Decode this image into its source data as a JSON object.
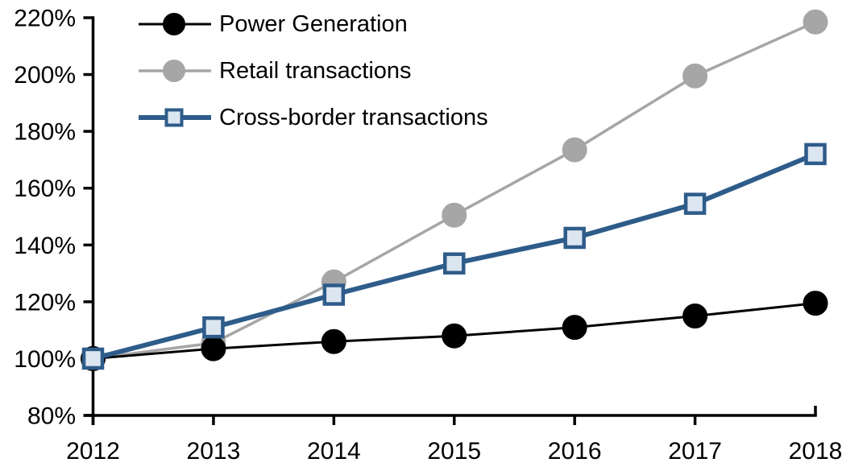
{
  "chart_data": {
    "type": "line",
    "title": "",
    "xlabel": "",
    "ylabel": "",
    "categories": [
      "2012",
      "2013",
      "2014",
      "2015",
      "2016",
      "2017",
      "2018"
    ],
    "series": [
      {
        "name": "Power Generation",
        "color": "#000000",
        "marker": "circle",
        "marker_fill": "#000000",
        "line_width": 3,
        "values": [
          100,
          103.5,
          106,
          108,
          111,
          115,
          119.5
        ]
      },
      {
        "name": "Retail transactions",
        "color": "#A6A6A6",
        "marker": "circle",
        "marker_fill": "#A6A6A6",
        "line_width": 3.5,
        "values": [
          100,
          105.5,
          127,
          150.5,
          173.5,
          199.5,
          218.5
        ]
      },
      {
        "name": "Cross-border transactions",
        "color": "#2E5C8A",
        "marker": "square",
        "marker_fill": "#DCE6F1",
        "line_width": 6,
        "values": [
          100,
          111,
          122.5,
          133.5,
          142.5,
          154.5,
          172
        ]
      }
    ],
    "draw_order": [
      1,
      0,
      2
    ],
    "ylim": [
      80,
      220
    ],
    "ytick_step": 20,
    "ytick_labels": [
      "80%",
      "100%",
      "120%",
      "140%",
      "160%",
      "180%",
      "200%",
      "220%"
    ],
    "axis_color": "#000000",
    "grid": false,
    "legend_position": "top-left"
  }
}
